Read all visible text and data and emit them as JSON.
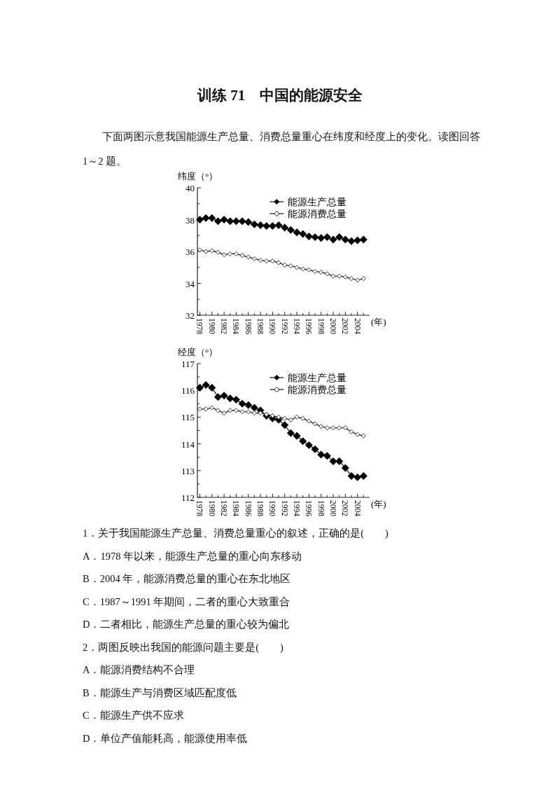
{
  "chart_data": [
    {
      "type": "line",
      "title": "训练 71　中国的能源安全",
      "subtitle": "下面两图示意我国能源生产总量、消费总量重心在纬度和经度上的变化。读图回答 1～2 题。",
      "ylabel": "纬度（°）",
      "xlabel": "(年)",
      "legend": "top right",
      "marker": "diamond",
      "x": [
        1978,
        1979,
        1980,
        1981,
        1982,
        1983,
        1984,
        1985,
        1986,
        1987,
        1988,
        1989,
        1990,
        1991,
        1992,
        1993,
        1994,
        1995,
        1996,
        1997,
        1998,
        1999,
        2000,
        2001,
        2002,
        2003,
        2004,
        2005
      ],
      "xlim": [
        1977.6,
        2006
      ],
      "xticks": [
        1978,
        {
          "value": 1979,
          "label": null
        },
        1980,
        {
          "value": 1981,
          "label": null
        },
        1982,
        {
          "value": 1983,
          "label": null
        },
        1984,
        {
          "value": 1985,
          "label": null
        },
        1986,
        {
          "value": 1987,
          "label": null
        },
        1988,
        {
          "value": 1989,
          "label": null
        },
        1990,
        {
          "value": 1991,
          "label": null
        },
        1992,
        {
          "value": 1993,
          "label": null
        },
        1994,
        {
          "value": 1995,
          "label": null
        },
        1996,
        {
          "value": 1997,
          "label": null
        },
        1998,
        {
          "value": 1999,
          "label": null
        },
        2000,
        {
          "value": 2001,
          "label": null
        },
        2002,
        {
          "value": 2003,
          "label": null
        },
        2004,
        {
          "value": 2005,
          "label": null
        }
      ],
      "ylim": [
        32,
        40
      ],
      "yticks": [
        32,
        {
          "value": 33,
          "label": null
        },
        34,
        {
          "value": 35,
          "label": null
        },
        36,
        {
          "value": 37,
          "label": null
        },
        38,
        {
          "value": 39,
          "label": null
        },
        40
      ],
      "series": [
        {
          "name": "能源生产总量",
          "color": "#000000",
          "values": [
            38.0,
            38.1,
            38.1,
            37.9,
            38.0,
            37.9,
            37.9,
            37.9,
            37.85,
            37.7,
            37.65,
            37.6,
            37.6,
            37.65,
            37.5,
            37.35,
            37.2,
            37.1,
            36.95,
            36.9,
            36.85,
            36.9,
            36.75,
            36.9,
            36.75,
            36.65,
            36.7,
            36.75
          ]
        },
        {
          "name": "能源消费总量",
          "color": "#000000",
          "values": [
            36.1,
            36.0,
            36.05,
            35.95,
            35.8,
            35.85,
            35.85,
            35.75,
            35.65,
            35.55,
            35.45,
            35.4,
            35.4,
            35.3,
            35.15,
            35.1,
            35.0,
            34.9,
            34.85,
            34.75,
            34.7,
            34.6,
            34.45,
            34.45,
            34.4,
            34.3,
            34.2,
            34.3
          ]
        }
      ]
    },
    {
      "type": "line",
      "ylabel": "经度（°）",
      "xlabel": "(年)",
      "legend": "top right",
      "marker": "diamond",
      "x": [
        1978,
        1979,
        1980,
        1981,
        1982,
        1983,
        1984,
        1985,
        1986,
        1987,
        1988,
        1989,
        1990,
        1991,
        1992,
        1993,
        1994,
        1995,
        1996,
        1997,
        1998,
        1999,
        2000,
        2001,
        2002,
        2003,
        2004,
        2005
      ],
      "xlim": [
        1977.6,
        2006
      ],
      "xticks": [
        1978,
        {
          "value": 1979,
          "label": null
        },
        1980,
        {
          "value": 1981,
          "label": null
        },
        1982,
        {
          "value": 1983,
          "label": null
        },
        1984,
        {
          "value": 1985,
          "label": null
        },
        1986,
        {
          "value": 1987,
          "label": null
        },
        1988,
        {
          "value": 1989,
          "label": null
        },
        1990,
        {
          "value": 1991,
          "label": null
        },
        1992,
        {
          "value": 1993,
          "label": null
        },
        1994,
        {
          "value": 1995,
          "label": null
        },
        1996,
        {
          "value": 1997,
          "label": null
        },
        1998,
        {
          "value": 1999,
          "label": null
        },
        2000,
        {
          "value": 2001,
          "label": null
        },
        2002,
        {
          "value": 2003,
          "label": null
        },
        2004,
        {
          "value": 2005,
          "label": null
        }
      ],
      "ylim": [
        112,
        117
      ],
      "yticks": [
        112,
        {
          "value": 112.5,
          "label": null
        },
        113,
        {
          "value": 113.5,
          "label": null
        },
        114,
        {
          "value": 114.5,
          "label": null
        },
        115,
        {
          "value": 115.5,
          "label": null
        },
        116,
        {
          "value": 116.5,
          "label": null
        },
        117
      ],
      "series": [
        {
          "name": "能源生产总量",
          "color": "#000000",
          "values": [
            116.1,
            116.2,
            116.1,
            115.75,
            115.8,
            115.7,
            115.65,
            115.5,
            115.45,
            115.35,
            115.25,
            115.05,
            114.95,
            114.9,
            114.7,
            114.4,
            114.3,
            114.1,
            113.95,
            113.8,
            113.6,
            113.55,
            113.35,
            113.35,
            113.1,
            112.8,
            112.75,
            112.8
          ]
        },
        {
          "name": "能源消费总量",
          "color": "#000000",
          "values": [
            115.3,
            115.3,
            115.35,
            115.25,
            115.15,
            115.25,
            115.25,
            115.2,
            115.2,
            115.15,
            115.15,
            115.1,
            115.05,
            115.0,
            114.95,
            114.9,
            115.0,
            114.95,
            114.85,
            114.75,
            114.65,
            114.6,
            114.6,
            114.6,
            114.6,
            114.45,
            114.35,
            114.3
          ]
        }
      ],
      "annotations": [
        "1．关于我国能源生产总量、消费总量重心的叙述，正确的是(　　)",
        "A．1978 年以来，能源生产总量的重心向东移动",
        "B．2004 年，能源消费总量的重心在东北地区",
        "C．1987～1991 年期间，二者的重心大致重合",
        "D．二者相比，能源生产总量的重心较为偏北",
        "2．两图反映出我国的能源问题主要是(　　)",
        "A．能源消费结构不合理",
        "B．能源生产与消费区域匹配度低",
        "C．能源生产供不应求",
        "D．单位产值能耗高，能源使用率低"
      ]
    }
  ]
}
